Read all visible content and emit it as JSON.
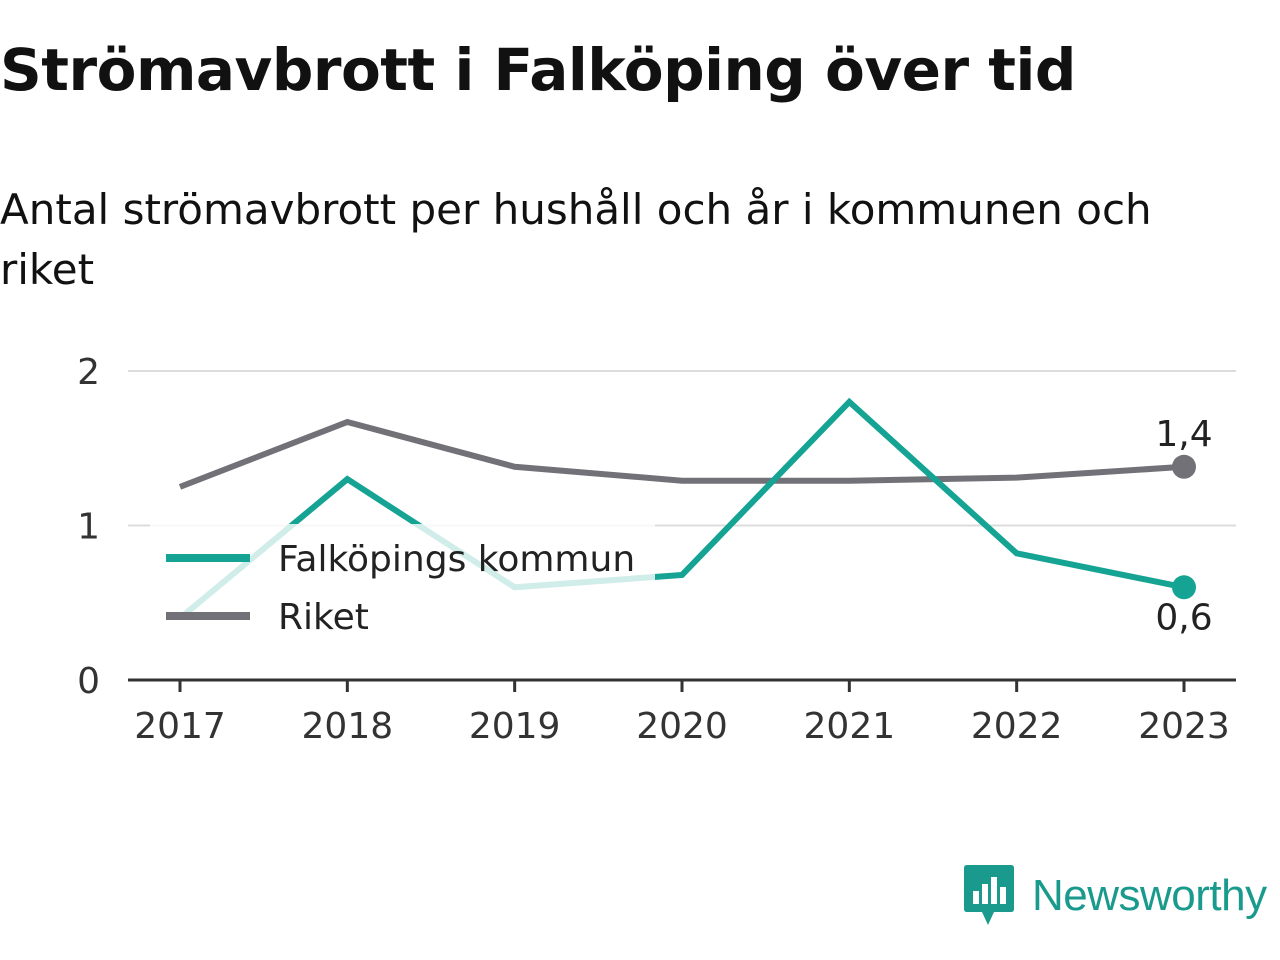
{
  "header": {
    "title": "Strömavbrott i Falköping över tid",
    "subtitle": "Antal strömavbrott per hushåll och år i kommunen och riket"
  },
  "brand": {
    "name": "Newsworthy",
    "icon": "newsworthy-logo-icon",
    "color": "#1a9a8c"
  },
  "chart_data": {
    "type": "line",
    "x": [
      "2017",
      "2018",
      "2019",
      "2020",
      "2021",
      "2022",
      "2023"
    ],
    "ylim": [
      0,
      2
    ],
    "yticks": [
      "0",
      "1",
      "2"
    ],
    "grid": true,
    "legend_position": "bottom-left",
    "series": [
      {
        "name": "Falköpings kommun",
        "color": "#15a394",
        "values": [
          0.4,
          1.3,
          0.6,
          0.68,
          1.8,
          0.82,
          0.6
        ],
        "end_label": "0,6"
      },
      {
        "name": "Riket",
        "color": "#727178",
        "values": [
          1.25,
          1.67,
          1.38,
          1.29,
          1.29,
          1.31,
          1.38
        ],
        "end_label": "1,4"
      }
    ]
  }
}
